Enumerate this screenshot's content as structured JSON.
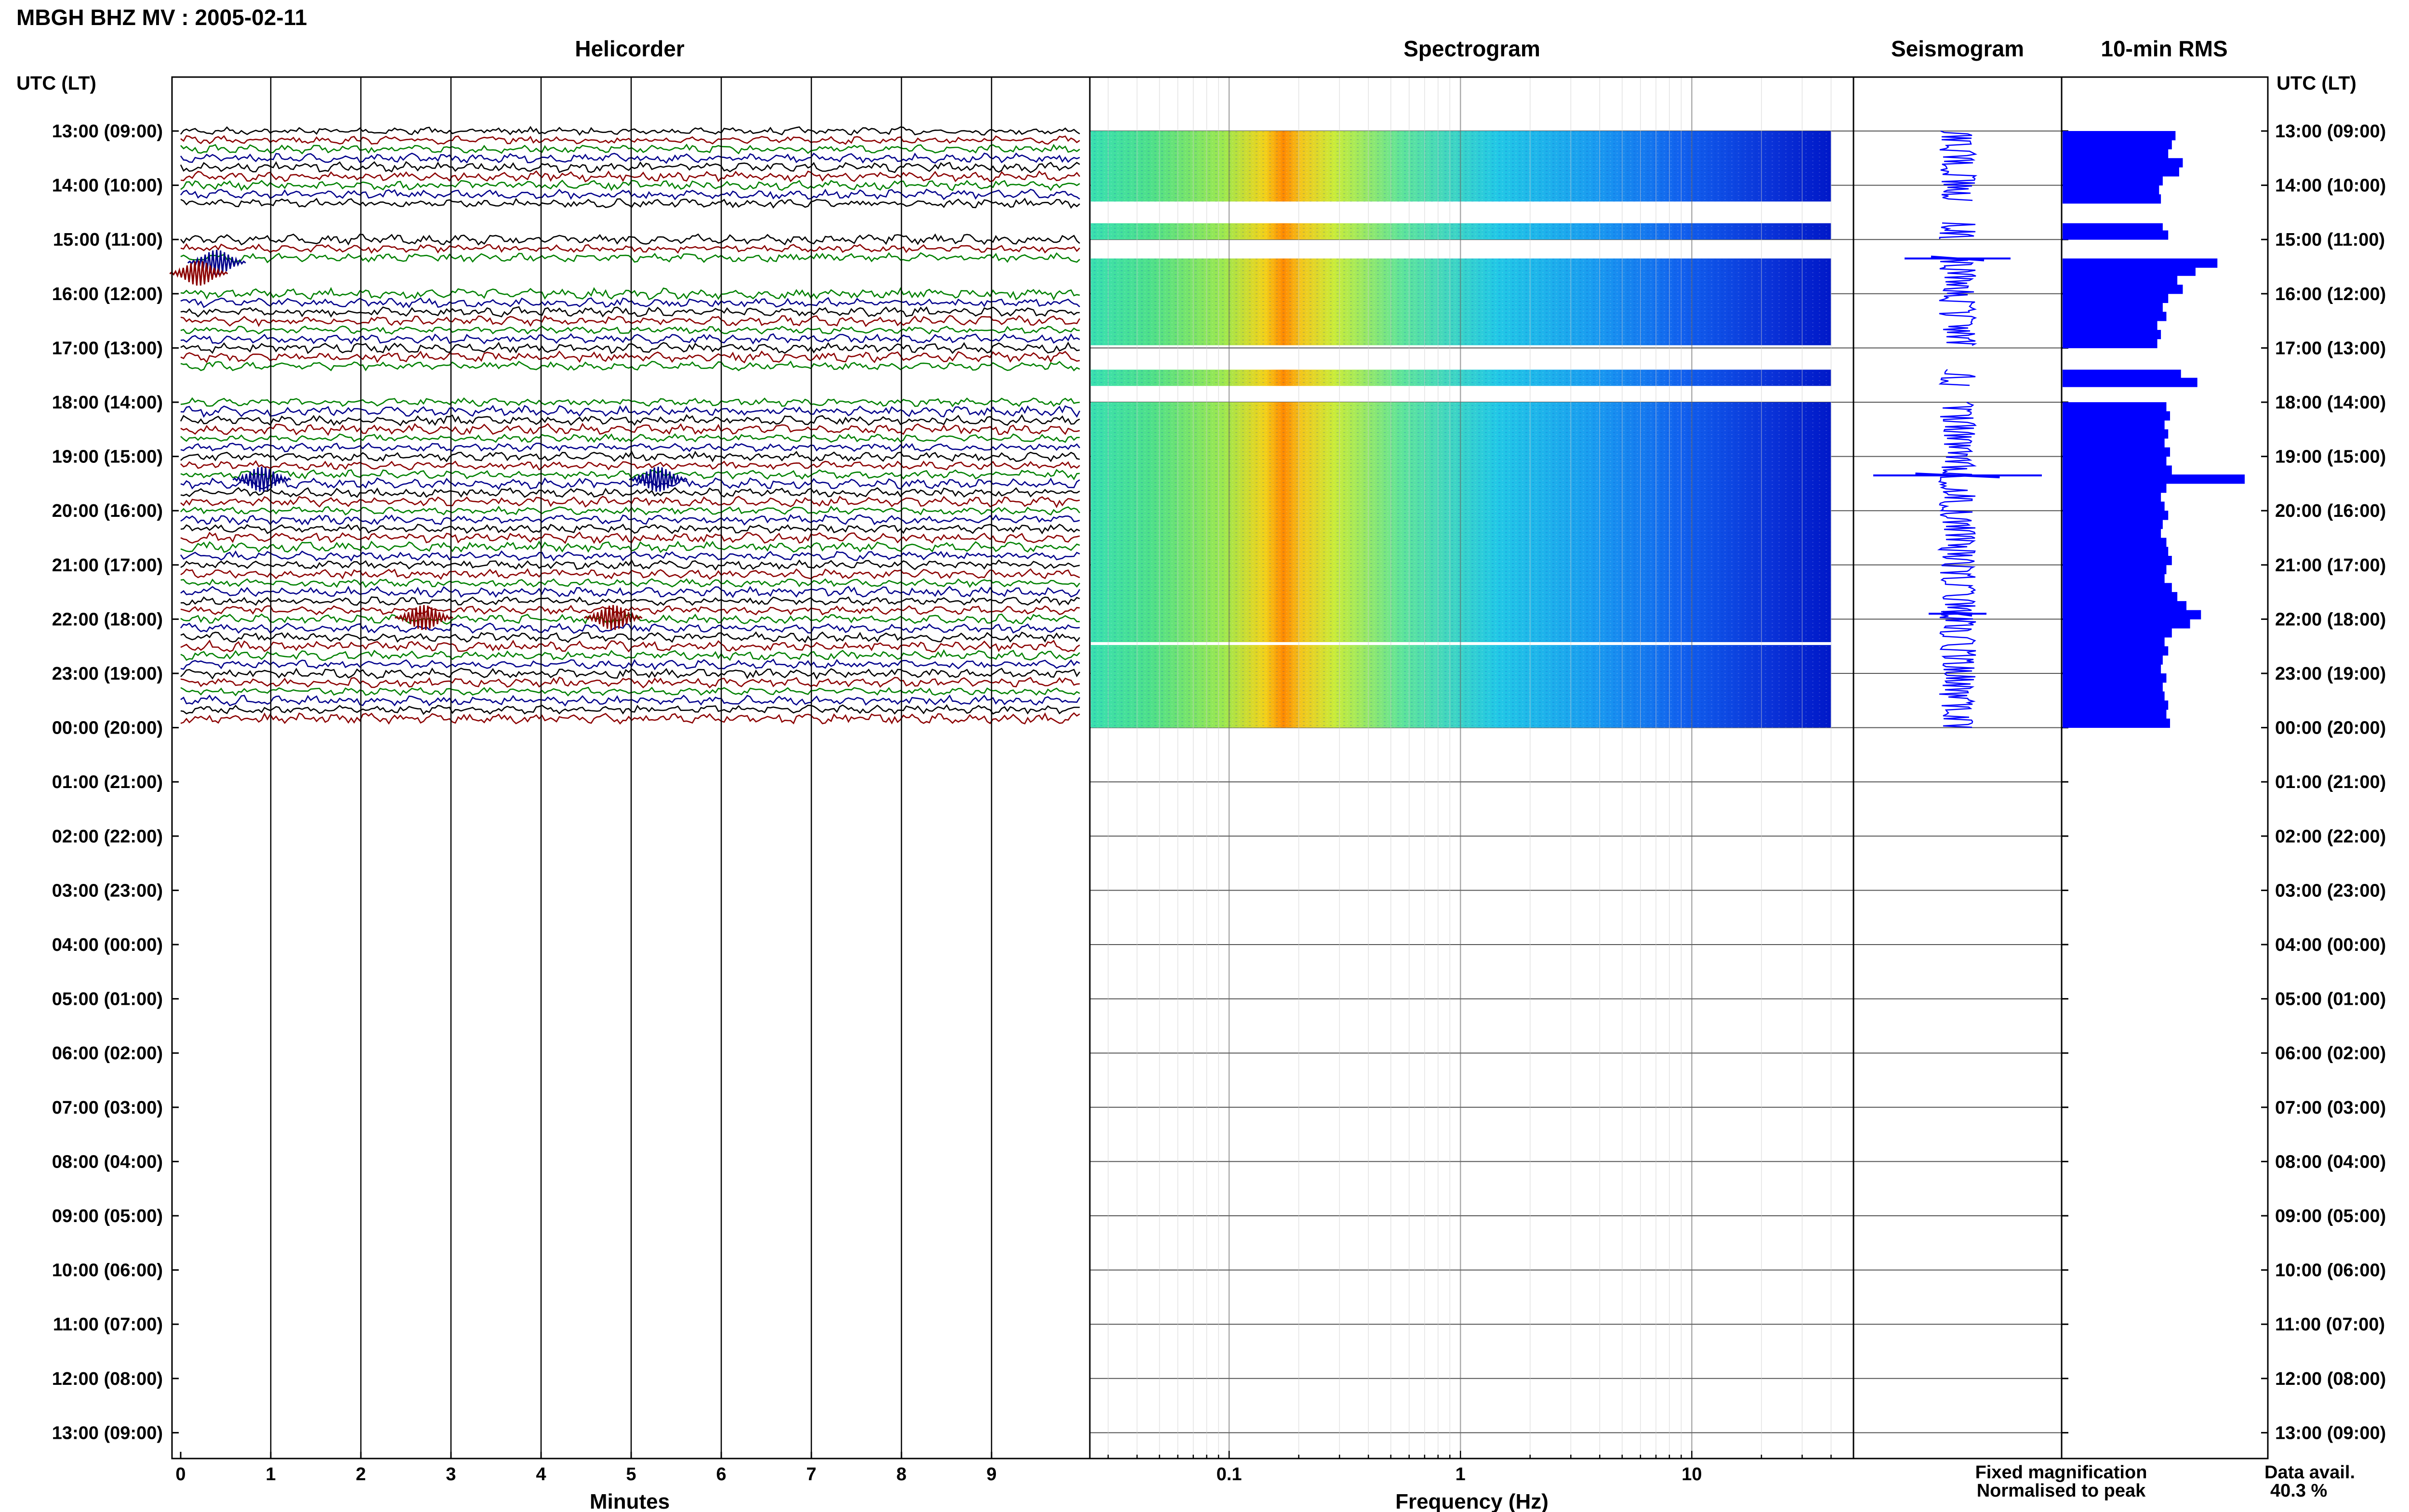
{
  "station_title": "MBGH BHZ MV : 2005-02-11",
  "panels": {
    "helicorder": "Helicorder",
    "spectrogram": "Spectrogram",
    "seismogram": "Seismogram",
    "rms": "10-min RMS"
  },
  "time_axis_label_left": "UTC (LT)",
  "time_axis_label_right": "UTC (LT)",
  "legend": {
    "fixed": "Fixed magnification",
    "fixed_color": "#0000ff",
    "normalised": "Normalised to peak",
    "normalised_color": "#ff0000"
  },
  "data_avail": {
    "label": "Data avail.",
    "value": "40.3 %"
  },
  "trace_colors": [
    "#000000",
    "#8b0000",
    "#008000",
    "#00008b"
  ],
  "bar_color": "#0000ff",
  "chart_data": [
    {
      "type": "line",
      "title": "Helicorder",
      "xlabel": "Minutes",
      "xticks": [
        "0",
        "1",
        "2",
        "3",
        "4",
        "5",
        "6",
        "7",
        "8",
        "9"
      ],
      "xlim": [
        0,
        10
      ],
      "hour_labels": [
        "13:00 (09:00)",
        "14:00 (10:00)",
        "15:00 (11:00)",
        "16:00 (12:00)",
        "17:00 (13:00)",
        "18:00 (14:00)",
        "19:00 (15:00)",
        "20:00 (16:00)",
        "21:00 (17:00)",
        "22:00 (18:00)",
        "23:00 (19:00)",
        "00:00 (20:00)",
        "01:00 (21:00)",
        "02:00 (22:00)",
        "03:00 (23:00)",
        "04:00 (00:00)",
        "05:00 (01:00)",
        "06:00 (02:00)",
        "07:00 (03:00)",
        "08:00 (04:00)",
        "09:00 (05:00)",
        "10:00 (06:00)",
        "11:00 (07:00)",
        "12:00 (08:00)",
        "13:00 (09:00)"
      ],
      "trace_rows_per_hour": 6,
      "data_hours": [
        {
          "hour": 0,
          "status": "full"
        },
        {
          "hour": 1,
          "status": "partial"
        },
        {
          "hour": 2,
          "status": "partial"
        },
        {
          "hour": 3,
          "status": "full"
        },
        {
          "hour": 4,
          "status": "partial"
        },
        {
          "hour": 5,
          "status": "full"
        },
        {
          "hour": 6,
          "status": "full"
        },
        {
          "hour": 7,
          "status": "full"
        },
        {
          "hour": 8,
          "status": "full"
        },
        {
          "hour": 9,
          "status": "full"
        },
        {
          "hour": 10,
          "status": "full"
        }
      ]
    },
    {
      "type": "heatmap",
      "title": "Spectrogram",
      "xlabel": "Frequency (Hz)",
      "xscale": "log",
      "xticks": [
        "0.1",
        "1",
        "10"
      ],
      "xlim": [
        0.025,
        50
      ],
      "data_xmax": 40,
      "peak_band_hz": [
        0.15,
        0.3
      ],
      "data_segments_hours": [
        [
          0,
          1.3
        ],
        [
          1.7,
          2.0
        ],
        [
          2.35,
          3.95
        ],
        [
          4.4,
          4.7
        ],
        [
          5.0,
          11.0
        ]
      ],
      "gap_line_hours": [
        9.45
      ]
    },
    {
      "type": "line",
      "title": "Seismogram",
      "data_segments_hours": [
        [
          0,
          1.3
        ],
        [
          1.7,
          2.0
        ],
        [
          2.35,
          3.95
        ],
        [
          4.4,
          4.7
        ],
        [
          5.0,
          11.0
        ]
      ],
      "spikes_hours": [
        2.35,
        6.35,
        8.9
      ]
    },
    {
      "type": "bar",
      "title": "10-min RMS",
      "orientation": "horizontal",
      "bars": [
        {
          "t": 0.0,
          "v": 0.62
        },
        {
          "t": 0.167,
          "v": 0.6
        },
        {
          "t": 0.333,
          "v": 0.58
        },
        {
          "t": 0.5,
          "v": 0.66
        },
        {
          "t": 0.667,
          "v": 0.64
        },
        {
          "t": 0.833,
          "v": 0.55
        },
        {
          "t": 1.0,
          "v": 0.53
        },
        {
          "t": 1.167,
          "v": 0.54
        },
        {
          "t": 1.7,
          "v": 0.55
        },
        {
          "t": 1.833,
          "v": 0.58
        },
        {
          "t": 2.35,
          "v": 0.85
        },
        {
          "t": 2.5,
          "v": 0.73
        },
        {
          "t": 2.667,
          "v": 0.63
        },
        {
          "t": 2.833,
          "v": 0.66
        },
        {
          "t": 3.0,
          "v": 0.58
        },
        {
          "t": 3.167,
          "v": 0.55
        },
        {
          "t": 3.333,
          "v": 0.57
        },
        {
          "t": 3.5,
          "v": 0.52
        },
        {
          "t": 3.667,
          "v": 0.54
        },
        {
          "t": 3.833,
          "v": 0.52
        },
        {
          "t": 4.4,
          "v": 0.65
        },
        {
          "t": 4.55,
          "v": 0.74
        },
        {
          "t": 5.0,
          "v": 0.57
        },
        {
          "t": 5.167,
          "v": 0.59
        },
        {
          "t": 5.333,
          "v": 0.56
        },
        {
          "t": 5.5,
          "v": 0.58
        },
        {
          "t": 5.667,
          "v": 0.56
        },
        {
          "t": 5.833,
          "v": 0.59
        },
        {
          "t": 6.0,
          "v": 0.57
        },
        {
          "t": 6.167,
          "v": 0.6
        },
        {
          "t": 6.333,
          "v": 1.0
        },
        {
          "t": 6.5,
          "v": 0.57
        },
        {
          "t": 6.667,
          "v": 0.54
        },
        {
          "t": 6.833,
          "v": 0.56
        },
        {
          "t": 7.0,
          "v": 0.58
        },
        {
          "t": 7.167,
          "v": 0.55
        },
        {
          "t": 7.333,
          "v": 0.54
        },
        {
          "t": 7.5,
          "v": 0.57
        },
        {
          "t": 7.667,
          "v": 0.58
        },
        {
          "t": 7.833,
          "v": 0.6
        },
        {
          "t": 8.0,
          "v": 0.57
        },
        {
          "t": 8.167,
          "v": 0.56
        },
        {
          "t": 8.333,
          "v": 0.6
        },
        {
          "t": 8.5,
          "v": 0.63
        },
        {
          "t": 8.667,
          "v": 0.68
        },
        {
          "t": 8.833,
          "v": 0.76
        },
        {
          "t": 9.0,
          "v": 0.7
        },
        {
          "t": 9.167,
          "v": 0.6
        },
        {
          "t": 9.333,
          "v": 0.56
        },
        {
          "t": 9.5,
          "v": 0.58
        },
        {
          "t": 9.667,
          "v": 0.55
        },
        {
          "t": 9.833,
          "v": 0.54
        },
        {
          "t": 10.0,
          "v": 0.57
        },
        {
          "t": 10.167,
          "v": 0.55
        },
        {
          "t": 10.333,
          "v": 0.56
        },
        {
          "t": 10.5,
          "v": 0.58
        },
        {
          "t": 10.667,
          "v": 0.57
        },
        {
          "t": 10.833,
          "v": 0.59
        }
      ]
    }
  ]
}
